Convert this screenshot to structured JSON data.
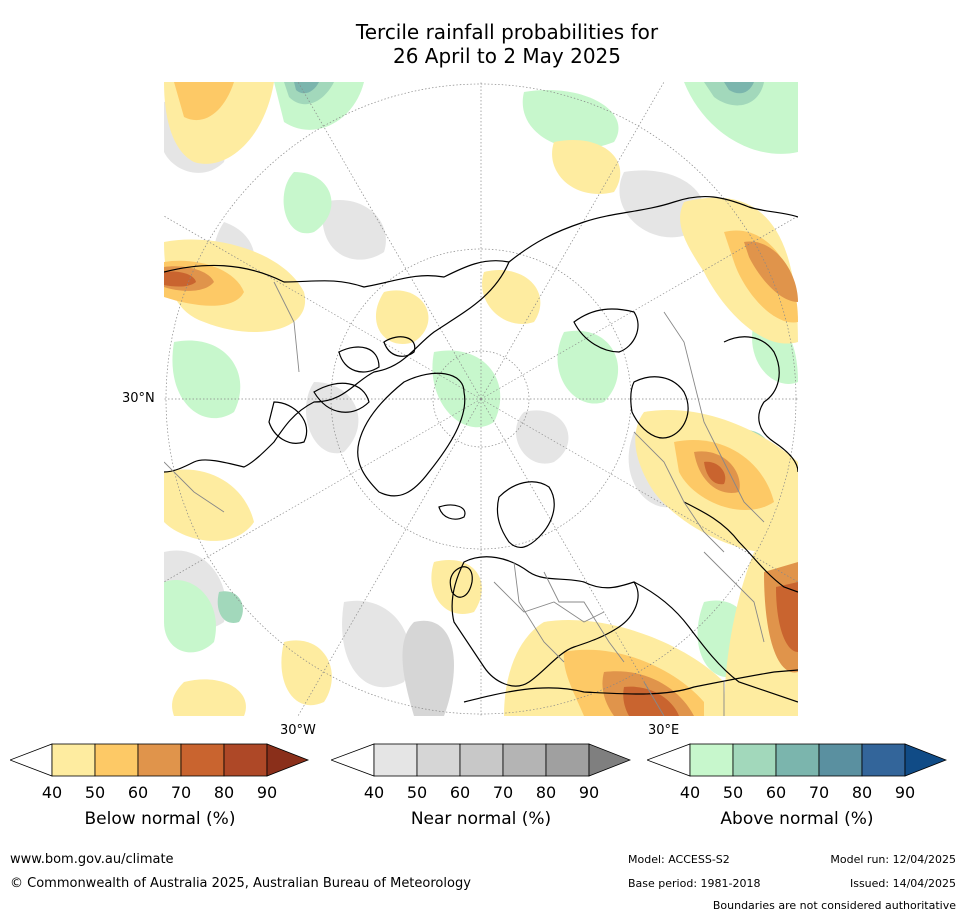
{
  "title": {
    "line1": "Tercile rainfall probabilities for",
    "line2": "26 April to 2 May 2025"
  },
  "map": {
    "projection": "north-polar-stereographic",
    "lat_label": "30°N",
    "lon_labels": {
      "west": "30°W",
      "east": "30°E"
    },
    "colors": {
      "below": [
        "#ffffff",
        "#feeca0",
        "#fdc966",
        "#e0944b",
        "#c9642f",
        "#ae4827",
        "#8a2f1a"
      ],
      "near": [
        "#ffffff",
        "#e5e5e5",
        "#d6d6d6",
        "#c8c8c8",
        "#b4b4b4",
        "#a0a0a0",
        "#7f7f7f"
      ],
      "above": [
        "#ffffff",
        "#c7f7cc",
        "#a2d8bb",
        "#7bb5ad",
        "#5a90a0",
        "#33659a",
        "#104b86"
      ]
    }
  },
  "legends": {
    "below": {
      "title": "Below normal (%)",
      "ticks": [
        "40",
        "50",
        "60",
        "70",
        "80",
        "90"
      ]
    },
    "near": {
      "title": "Near normal (%)",
      "ticks": [
        "40",
        "50",
        "60",
        "70",
        "80",
        "90"
      ]
    },
    "above": {
      "title": "Above normal (%)",
      "ticks": [
        "40",
        "50",
        "60",
        "70",
        "80",
        "90"
      ]
    }
  },
  "footer": {
    "website": "www.bom.gov.au/climate",
    "copyright": "© Commonwealth of Australia 2025, Australian Bureau of Meteorology",
    "model": "Model: ACCESS-S2",
    "base_period": "Base period: 1981-2018",
    "model_run": "Model run: 12/04/2025",
    "issued": "Issued: 14/04/2025",
    "disclaimer": "Boundaries are not considered authoritative"
  }
}
